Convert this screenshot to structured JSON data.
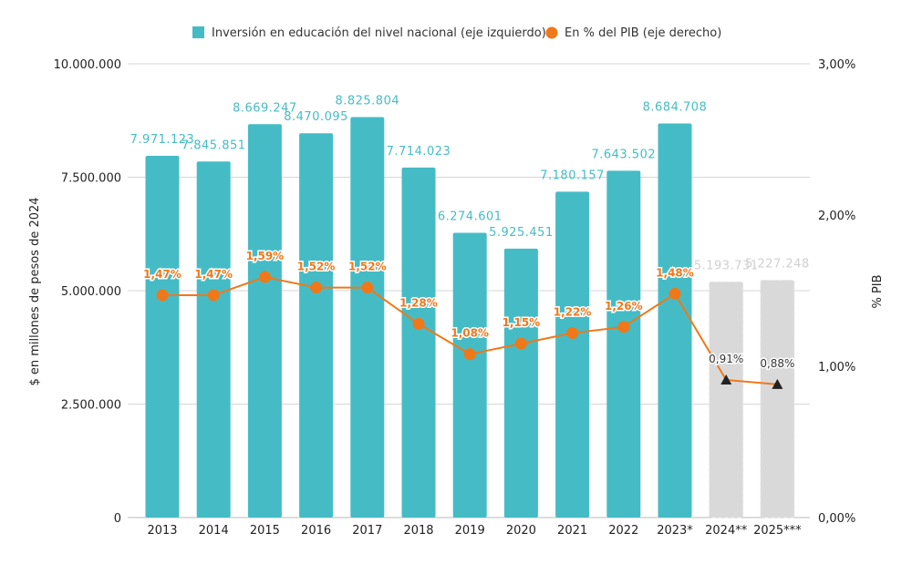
{
  "chart_data": {
    "type": "bar",
    "categories": [
      "2013",
      "2014",
      "2015",
      "2016",
      "2017",
      "2018",
      "2019",
      "2020",
      "2021",
      "2022",
      "2023*",
      "2024**",
      "2025***"
    ],
    "series": [
      {
        "name": "Inversión en educación del nivel nacional (eje izquierdo)",
        "type": "bar",
        "axis": "left",
        "color": "#45BCC5",
        "projected_color": "#D9D9D9",
        "values": [
          7971123,
          7845851,
          8669247,
          8470095,
          8825804,
          7714023,
          6274601,
          5925451,
          7180157,
          7643502,
          8684708,
          5193731,
          5227248
        ],
        "labels": [
          "7.971.123",
          "7.845.851",
          "8.669.247",
          "8.470.095",
          "8.825.804",
          "7.714.023",
          "6.274.601",
          "5.925.451",
          "7.180.157",
          "7.643.502",
          "8.684.708",
          "5.193.731",
          "5.227.248"
        ]
      },
      {
        "name": "En % del PIB (eje derecho)",
        "type": "line",
        "axis": "right",
        "color": "#F07819",
        "values": [
          1.47,
          1.47,
          1.59,
          1.52,
          1.52,
          1.28,
          1.08,
          1.15,
          1.22,
          1.26,
          1.48,
          0.91,
          0.88
        ],
        "labels": [
          "1,47%",
          "1,47%",
          "1,59%",
          "1,52%",
          "1,52%",
          "1,28%",
          "1,08%",
          "1,15%",
          "1,22%",
          "1,26%",
          "1,48%",
          "0,91%",
          "0,88%"
        ]
      }
    ],
    "projected_from_index": 11,
    "ylabel": "$ en millones de pesos de 2024",
    "y2label": "% PIB",
    "ylim": [
      0,
      10000000
    ],
    "y2lim": [
      0,
      3
    ],
    "yticks": [
      "0",
      "2.500.000",
      "5.000.000",
      "7.500.000",
      "10.000.000"
    ],
    "y2ticks": [
      "0,00%",
      "1,00%",
      "2,00%",
      "3,00%"
    ],
    "grid": true,
    "legend": "top"
  }
}
